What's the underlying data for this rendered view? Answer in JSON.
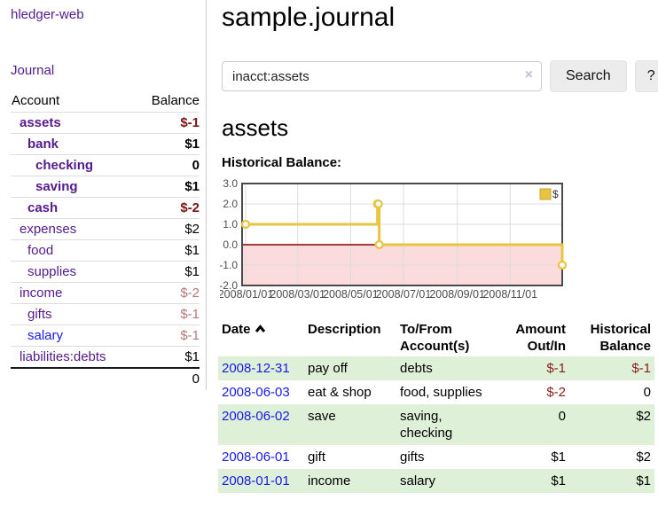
{
  "colors": {
    "link_purple": "#551a8b",
    "link_blue": "#1a1ae6",
    "negative_strong": "#7f1111",
    "negative_muted": "#b97878",
    "negative_table": "#8b1c1c",
    "row_highlight_green": "#dff0d8",
    "chart_gold": "#e9c440",
    "chart_negative_region": "#fbdbdb",
    "chart_zero_line": "#8b0000"
  },
  "sidebar": {
    "app_title": "hledger-web",
    "journal_link": "Journal",
    "accounts_table": {
      "headers": {
        "account": "Account",
        "balance": "Balance"
      },
      "rows": [
        {
          "account": "assets",
          "balance": "$-1",
          "depth": 1,
          "bold": true,
          "balance_tone": "neg-strong",
          "link_tone": "purple"
        },
        {
          "account": "bank",
          "balance": "$1",
          "depth": 2,
          "bold": true,
          "balance_tone": "plain",
          "link_tone": "purple"
        },
        {
          "account": "checking",
          "balance": "0",
          "depth": 3,
          "bold": true,
          "balance_tone": "plain",
          "link_tone": "purple"
        },
        {
          "account": "saving",
          "balance": "$1",
          "depth": 3,
          "bold": true,
          "balance_tone": "plain",
          "link_tone": "purple"
        },
        {
          "account": "cash",
          "balance": "$-2",
          "depth": 2,
          "bold": true,
          "balance_tone": "neg-strong",
          "link_tone": "purple"
        },
        {
          "account": "expenses",
          "balance": "$2",
          "depth": 1,
          "bold": false,
          "balance_tone": "plain",
          "link_tone": "purple"
        },
        {
          "account": "food",
          "balance": "$1",
          "depth": 2,
          "bold": false,
          "balance_tone": "plain",
          "link_tone": "purple"
        },
        {
          "account": "supplies",
          "balance": "$1",
          "depth": 2,
          "bold": false,
          "balance_tone": "plain",
          "link_tone": "purple"
        },
        {
          "account": "income",
          "balance": "$-2",
          "depth": 1,
          "bold": false,
          "balance_tone": "neg-muted",
          "link_tone": "purple"
        },
        {
          "account": "gifts",
          "balance": "$-1",
          "depth": 2,
          "bold": false,
          "balance_tone": "neg-muted",
          "link_tone": "purple"
        },
        {
          "account": "salary",
          "balance": "$-1",
          "depth": 2,
          "bold": false,
          "balance_tone": "neg-muted",
          "link_tone": "blue"
        },
        {
          "account": "liabilities:debts",
          "balance": "$1",
          "depth": 1,
          "bold": false,
          "balance_tone": "plain",
          "link_tone": "purple"
        }
      ],
      "total": "0"
    }
  },
  "main": {
    "title": "sample.journal",
    "search": {
      "value": "inacct:assets",
      "clear_icon": "×",
      "search_button": "Search",
      "help_button": "?"
    },
    "account_heading": "assets",
    "chart_title": "Historical Balance:"
  },
  "chart_data": {
    "type": "line",
    "step": true,
    "title": "Historical Balance",
    "series": [
      {
        "name": "$",
        "points": [
          {
            "date": "2008-01-01",
            "value": 1
          },
          {
            "date": "2008-06-01",
            "value": 2
          },
          {
            "date": "2008-06-02",
            "value": 2
          },
          {
            "date": "2008-06-03",
            "value": 0
          },
          {
            "date": "2008-12-31",
            "value": -1
          }
        ]
      }
    ],
    "ylim": [
      -2.0,
      3.0
    ],
    "yticks": [
      "3.0",
      "2.0",
      "1.0",
      "0.0",
      "-1.0",
      "-2.0"
    ],
    "xticks": [
      "2008/01/01",
      "2008/03/01",
      "2008/05/01",
      "2008/07/01",
      "2008/09/01",
      "2008/11/01"
    ],
    "x_domain": [
      "2008-01-01",
      "2008-12-31"
    ],
    "legend": {
      "label": "$",
      "position": "top-right"
    },
    "grid": true,
    "negative_region_shaded": true
  },
  "register": {
    "headers": {
      "date": "Date",
      "description": "Description",
      "account": "To/From Account(s)",
      "amount": "Amount Out/In",
      "balance": "Historical Balance"
    },
    "sort": {
      "column": "date",
      "direction": "ascending"
    },
    "rows": [
      {
        "date": "2008-12-31",
        "description": "pay off",
        "account": "debts",
        "amount": "$-1",
        "amount_negative": true,
        "balance": "$-1",
        "balance_negative": true
      },
      {
        "date": "2008-06-03",
        "description": "eat & shop",
        "account": "food, supplies",
        "amount": "$-2",
        "amount_negative": true,
        "balance": "0",
        "balance_negative": false
      },
      {
        "date": "2008-06-02",
        "description": "save",
        "account": "saving, checking",
        "amount": "0",
        "amount_negative": false,
        "balance": "$2",
        "balance_negative": false
      },
      {
        "date": "2008-06-01",
        "description": "gift",
        "account": "gifts",
        "amount": "$1",
        "amount_negative": false,
        "balance": "$2",
        "balance_negative": false
      },
      {
        "date": "2008-01-01",
        "description": "income",
        "account": "salary",
        "amount": "$1",
        "amount_negative": false,
        "balance": "$1",
        "balance_negative": false
      }
    ]
  }
}
